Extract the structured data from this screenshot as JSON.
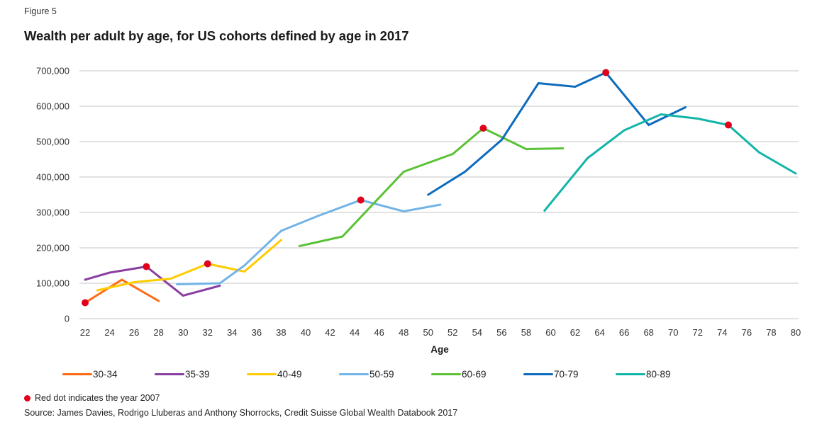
{
  "figure_label": "Figure 5",
  "chart_data": {
    "type": "line",
    "title": "Wealth per adult by age, for US cohorts defined by age in 2017",
    "xlabel": "Age",
    "ylabel": "",
    "xlim": [
      22,
      80
    ],
    "ylim": [
      0,
      700000
    ],
    "x_ticks": [
      "22",
      "24",
      "26",
      "28",
      "30",
      "32",
      "34",
      "36",
      "38",
      "40",
      "42",
      "44",
      "46",
      "48",
      "50",
      "52",
      "54",
      "56",
      "58",
      "60",
      "62",
      "64",
      "66",
      "68",
      "70",
      "72",
      "74",
      "76",
      "78",
      "80"
    ],
    "y_ticks": [
      "0",
      "100,000",
      "200,000",
      "300,000",
      "400,000",
      "500,000",
      "600,000",
      "700,000"
    ],
    "grid": true,
    "legend_position": "bottom",
    "marker_color": "#e2001a",
    "series": [
      {
        "name": "30-34",
        "color": "#ff6a13",
        "x": [
          22,
          25,
          28
        ],
        "values": [
          45000,
          110000,
          50000
        ],
        "marker_x": 22
      },
      {
        "name": "35-39",
        "color": "#8a3fa0",
        "x": [
          22,
          24,
          27,
          30,
          33
        ],
        "values": [
          110000,
          130000,
          147000,
          65000,
          93000
        ],
        "marker_x": 27
      },
      {
        "name": "40-49",
        "color": "#ffcc00",
        "x": [
          23,
          26,
          29,
          32,
          35,
          38
        ],
        "values": [
          80000,
          103000,
          113000,
          155000,
          133000,
          222000
        ],
        "marker_x": 32
      },
      {
        "name": "50-59",
        "color": "#72b4e6",
        "x": [
          29.5,
          33,
          35,
          38,
          41,
          44.5,
          48,
          51
        ],
        "values": [
          97000,
          100000,
          150000,
          248000,
          290000,
          335000,
          303000,
          322000
        ],
        "marker_x": 44.5
      },
      {
        "name": "60-69",
        "color": "#5bc236",
        "x": [
          39.5,
          43,
          48,
          52,
          54.5,
          58,
          61
        ],
        "values": [
          205000,
          232000,
          415000,
          465000,
          538000,
          479000,
          481000
        ],
        "marker_x": 54.5
      },
      {
        "name": "70-79",
        "color": "#0d6bbd",
        "x": [
          50,
          53,
          56,
          59,
          62,
          64.5,
          68,
          71
        ],
        "values": [
          350000,
          415000,
          505000,
          665000,
          655000,
          695000,
          547000,
          597000
        ],
        "marker_x": 64.5
      },
      {
        "name": "80-89",
        "color": "#12b5a8",
        "x": [
          59.5,
          63,
          66,
          69,
          72,
          74.5,
          77,
          80
        ],
        "values": [
          305000,
          453000,
          532000,
          577000,
          565000,
          547000,
          470000,
          410000
        ],
        "marker_x": 74.5
      }
    ]
  },
  "footnote": "Red dot indicates the year 2007",
  "source": "Source: James Davies, Rodrigo Lluberas and Anthony Shorrocks, Credit Suisse Global Wealth Databook 2017"
}
